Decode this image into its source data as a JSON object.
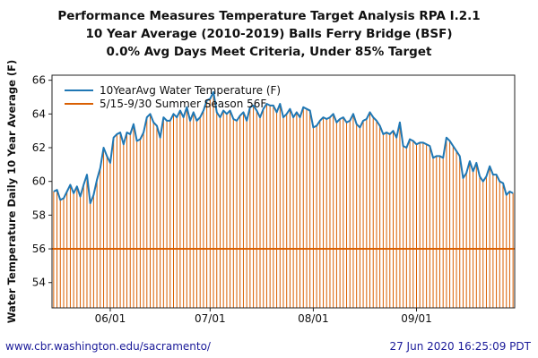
{
  "footer": {
    "url": "www.cbr.washington.edu/sacramento/",
    "timestamp": "27 Jun 2020 16:25:09 PDT"
  },
  "chart_data": {
    "type": "line",
    "title": [
      "Performance Measures Temperature Target Analysis RPA I.2.1",
      "10 Year Average (2010-2019) Balls Ferry Bridge (BSF)",
      "0.0% Avg Days Meet Criteria, Under 85% Target"
    ],
    "xlabel": "",
    "ylabel": "Water Temperature Daily 10 Year Average (F)",
    "x_range": [
      "05/15",
      "09/30"
    ],
    "ylim": [
      52.5,
      66.3
    ],
    "yticks": [
      54,
      56,
      58,
      60,
      62,
      64,
      66
    ],
    "xticks": [
      {
        "date": "06/01",
        "label": "06/01"
      },
      {
        "date": "07/01",
        "label": "07/01"
      },
      {
        "date": "08/01",
        "label": "08/01"
      },
      {
        "date": "09/01",
        "label": "09/01"
      }
    ],
    "grid": false,
    "legend_position": "top-left",
    "series": [
      {
        "name": "10YearAvg Water Temperature (F)",
        "color": "#1f77b4",
        "style": "line",
        "dates": [
          "05/15",
          "05/16",
          "05/17",
          "05/18",
          "05/19",
          "05/20",
          "05/21",
          "05/22",
          "05/23",
          "05/24",
          "05/25",
          "05/26",
          "05/27",
          "05/28",
          "05/29",
          "05/30",
          "05/31",
          "06/01",
          "06/02",
          "06/03",
          "06/04",
          "06/05",
          "06/06",
          "06/07",
          "06/08",
          "06/09",
          "06/10",
          "06/11",
          "06/12",
          "06/13",
          "06/14",
          "06/15",
          "06/16",
          "06/17",
          "06/18",
          "06/19",
          "06/20",
          "06/21",
          "06/22",
          "06/23",
          "06/24",
          "06/25",
          "06/26",
          "06/27",
          "06/28",
          "06/29",
          "06/30",
          "07/01",
          "07/02",
          "07/03",
          "07/04",
          "07/05",
          "07/06",
          "07/07",
          "07/08",
          "07/09",
          "07/10",
          "07/11",
          "07/12",
          "07/13",
          "07/14",
          "07/15",
          "07/16",
          "07/17",
          "07/18",
          "07/19",
          "07/20",
          "07/21",
          "07/22",
          "07/23",
          "07/24",
          "07/25",
          "07/26",
          "07/27",
          "07/28",
          "07/29",
          "07/30",
          "07/31",
          "08/01",
          "08/02",
          "08/03",
          "08/04",
          "08/05",
          "08/06",
          "08/07",
          "08/08",
          "08/09",
          "08/10",
          "08/11",
          "08/12",
          "08/13",
          "08/14",
          "08/15",
          "08/16",
          "08/17",
          "08/18",
          "08/19",
          "08/20",
          "08/21",
          "08/22",
          "08/23",
          "08/24",
          "08/25",
          "08/26",
          "08/27",
          "08/28",
          "08/29",
          "08/30",
          "08/31",
          "09/01",
          "09/02",
          "09/03",
          "09/04",
          "09/05",
          "09/06",
          "09/07",
          "09/08",
          "09/09",
          "09/10",
          "09/11",
          "09/12",
          "09/13",
          "09/14",
          "09/15",
          "09/16",
          "09/17",
          "09/18",
          "09/19",
          "09/20",
          "09/21",
          "09/22",
          "09/23",
          "09/24",
          "09/25",
          "09/26",
          "09/27",
          "09/28",
          "09/29",
          "09/30"
        ],
        "values": [
          59.4,
          59.5,
          58.9,
          59.0,
          59.4,
          59.8,
          59.3,
          59.7,
          59.1,
          59.8,
          60.4,
          58.7,
          59.2,
          60.1,
          60.8,
          62.0,
          61.5,
          61.1,
          62.6,
          62.8,
          62.9,
          62.2,
          62.9,
          62.8,
          63.4,
          62.4,
          62.5,
          62.9,
          63.8,
          64.0,
          63.5,
          63.3,
          62.6,
          63.8,
          63.6,
          63.6,
          64.0,
          63.8,
          64.2,
          63.8,
          64.4,
          63.6,
          64.1,
          63.6,
          63.8,
          64.2,
          64.8,
          64.9,
          65.3,
          64.1,
          63.8,
          64.2,
          64.0,
          64.2,
          63.7,
          63.6,
          63.9,
          64.1,
          63.6,
          64.4,
          64.5,
          64.2,
          63.8,
          64.3,
          64.6,
          64.5,
          64.5,
          64.1,
          64.6,
          63.8,
          64.0,
          64.3,
          63.8,
          64.1,
          63.8,
          64.4,
          64.3,
          64.2,
          63.2,
          63.3,
          63.6,
          63.8,
          63.7,
          63.8,
          64.0,
          63.5,
          63.7,
          63.8,
          63.5,
          63.6,
          64.0,
          63.4,
          63.2,
          63.6,
          63.7,
          64.1,
          63.8,
          63.6,
          63.3,
          62.8,
          62.9,
          62.8,
          63.0,
          62.6,
          63.5,
          62.1,
          62.0,
          62.5,
          62.4,
          62.2,
          62.3,
          62.3,
          62.2,
          62.1,
          61.4,
          61.5,
          61.5,
          61.4,
          62.6,
          62.4,
          62.1,
          61.8,
          61.5,
          60.2,
          60.5,
          61.2,
          60.6,
          61.1,
          60.3,
          60.0,
          60.3,
          60.9,
          60.4,
          60.4,
          60.0,
          59.9,
          59.2,
          59.4,
          59.3
        ]
      },
      {
        "name": "5/15-9/30 Summer Season 56F",
        "color": "#d95f02",
        "style": "threshold",
        "value": 56
      }
    ]
  }
}
